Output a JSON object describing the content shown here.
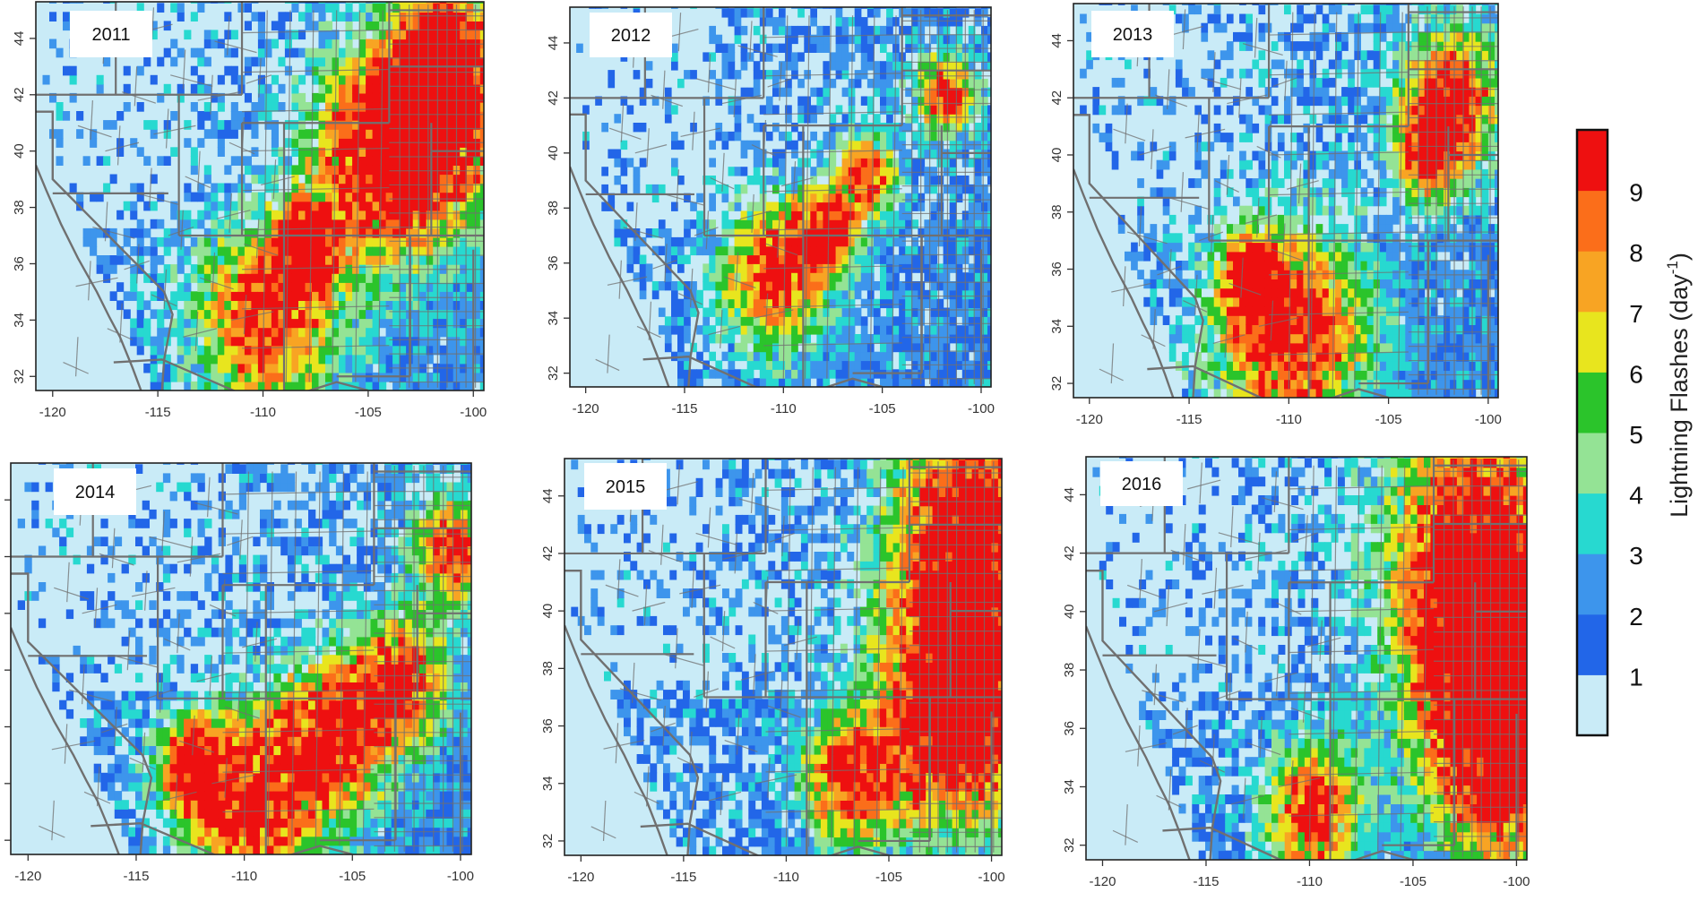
{
  "figure": {
    "panels": [
      {
        "year": "2011",
        "hotspots": [
          {
            "lon": -104.5,
            "lat": 39.5,
            "w": 2.5
          },
          {
            "lon": -102,
            "lat": 41,
            "w": 2.2
          },
          {
            "lon": -101.5,
            "lat": 43.5,
            "w": 1.5
          },
          {
            "lon": -110,
            "lat": 34,
            "w": 2.2
          },
          {
            "lon": -108,
            "lat": 36.5,
            "w": 1.0
          }
        ]
      },
      {
        "year": "2012",
        "hotspots": [
          {
            "lon": -110.5,
            "lat": 35.5,
            "w": 1.8
          },
          {
            "lon": -106,
            "lat": 39,
            "w": 1.0
          },
          {
            "lon": -108,
            "lat": 37,
            "w": 1.0
          },
          {
            "lon": -102,
            "lat": 42,
            "w": 1.0
          }
        ]
      },
      {
        "year": "2013",
        "hotspots": [
          {
            "lon": -110,
            "lat": 33.5,
            "w": 2.6
          },
          {
            "lon": -102,
            "lat": 42,
            "w": 1.6
          },
          {
            "lon": -103,
            "lat": 40,
            "w": 1.2
          },
          {
            "lon": -112,
            "lat": 35.5,
            "w": 1.0
          }
        ]
      },
      {
        "year": "2014",
        "hotspots": [
          {
            "lon": -110,
            "lat": 33.2,
            "w": 2.2
          },
          {
            "lon": -106,
            "lat": 35.5,
            "w": 1.8
          },
          {
            "lon": -103,
            "lat": 37.5,
            "w": 1.5
          },
          {
            "lon": -100.5,
            "lat": 42,
            "w": 1.2
          },
          {
            "lon": -112.5,
            "lat": 34.5,
            "w": 1.0
          }
        ]
      },
      {
        "year": "2015",
        "hotspots": [
          {
            "lon": -101,
            "lat": 43.5,
            "w": 2.6
          },
          {
            "lon": -101.5,
            "lat": 39,
            "w": 2.6
          },
          {
            "lon": -102,
            "lat": 35.5,
            "w": 2.4
          },
          {
            "lon": -107,
            "lat": 34,
            "w": 1.5
          }
        ]
      },
      {
        "year": "2016",
        "hotspots": [
          {
            "lon": -102,
            "lat": 42.5,
            "w": 3.0
          },
          {
            "lon": -101.5,
            "lat": 38,
            "w": 2.8
          },
          {
            "lon": -100.5,
            "lat": 34.5,
            "w": 2.4
          },
          {
            "lon": -110,
            "lat": 33,
            "w": 1.5
          }
        ]
      }
    ],
    "lon_ticks": [
      "-120",
      "-115",
      "-110",
      "-105",
      "-100"
    ],
    "lat_ticks": [
      "32",
      "34",
      "36",
      "38",
      "40",
      "42",
      "44"
    ],
    "lon_range": [
      -120.8,
      -99.5
    ],
    "lat_range": [
      31.5,
      45.3
    ]
  },
  "colorbar": {
    "title": "Lightning Flashes (day",
    "title_sup": "-1",
    "title_close": ")",
    "labels": [
      "1",
      "2",
      "3",
      "4",
      "5",
      "6",
      "7",
      "8",
      "9"
    ],
    "colors": [
      "#c9ebf7",
      "#2266e8",
      "#3d95ec",
      "#27d9d0",
      "#94e395",
      "#2bc42b",
      "#e8e51e",
      "#f8a423",
      "#fb6e1a",
      "#ee1010"
    ]
  },
  "map_colors": {
    "ocean": "#c9ebf7",
    "land": "#c9ebf7",
    "borders": "#707070",
    "frame": "#222222"
  }
}
